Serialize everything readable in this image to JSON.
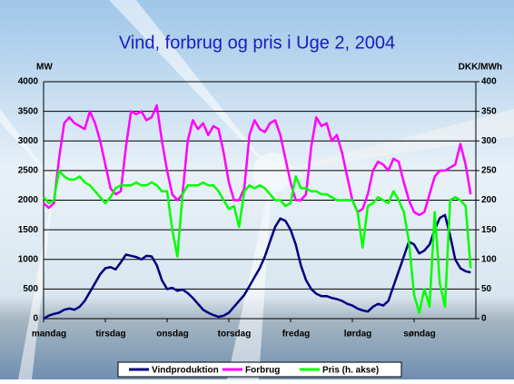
{
  "chart_data": {
    "type": "line",
    "title": "Vind, forbrug og pris i Uge 2, 2004",
    "ylabel": "MW",
    "y2label": "DKK/MWh",
    "x": [
      0,
      2,
      4,
      6,
      8,
      10,
      12,
      14,
      16,
      18,
      20,
      22,
      24,
      26,
      28,
      30,
      32,
      34,
      36,
      38,
      40,
      42,
      44,
      46,
      48,
      50,
      52,
      54,
      56,
      58,
      60,
      62,
      64,
      66,
      68,
      70,
      72,
      74,
      76,
      78,
      80,
      82,
      84,
      86,
      88,
      90,
      92,
      94,
      96,
      98,
      100,
      102,
      104,
      106,
      108,
      110,
      112,
      114,
      116,
      118,
      120,
      122,
      124,
      126,
      128,
      130,
      132,
      134,
      136,
      138,
      140,
      142,
      144,
      146,
      148,
      150,
      152,
      154,
      156,
      158,
      160,
      162,
      164,
      166
    ],
    "xlim": [
      0,
      168
    ],
    "xticks": [
      {
        "value": 0,
        "label": "mandag"
      },
      {
        "value": 24,
        "label": "tirsdag"
      },
      {
        "value": 48,
        "label": "onsdag"
      },
      {
        "value": 72,
        "label": "torsdag"
      },
      {
        "value": 96,
        "label": "fredag"
      },
      {
        "value": 120,
        "label": "lørdag"
      },
      {
        "value": 144,
        "label": "søndag"
      }
    ],
    "ylim": [
      0,
      4000
    ],
    "yticks": [
      0,
      500,
      1000,
      1500,
      2000,
      2500,
      3000,
      3500,
      4000
    ],
    "y2lim": [
      0,
      400
    ],
    "y2ticks": [
      0,
      50,
      100,
      150,
      200,
      250,
      300,
      350,
      400
    ],
    "grid": true,
    "series": [
      {
        "name": "Vindproduktion",
        "color": "#000080",
        "values": [
          0,
          50,
          80,
          100,
          150,
          170,
          150,
          200,
          300,
          450,
          600,
          750,
          850,
          870,
          830,
          950,
          1080,
          1060,
          1040,
          1000,
          1060,
          1050,
          900,
          650,
          500,
          520,
          470,
          490,
          430,
          350,
          250,
          150,
          100,
          60,
          30,
          50,
          100,
          200,
          300,
          400,
          550,
          700,
          850,
          1050,
          1300,
          1550,
          1690,
          1650,
          1500,
          1250,
          900,
          650,
          500,
          420,
          380,
          380,
          350,
          330,
          300,
          250,
          220,
          170,
          140,
          120,
          200,
          250,
          220,
          300,
          550,
          800,
          1050,
          1300,
          1250,
          1100,
          1150,
          1250,
          1500,
          1700,
          1750,
          1400,
          1000,
          850,
          800,
          780
        ]
      },
      {
        "name": "Forbrug",
        "color": "#ff00ff",
        "values": [
          1950,
          1870,
          1950,
          2700,
          3300,
          3400,
          3300,
          3250,
          3200,
          3500,
          3300,
          3000,
          2600,
          2200,
          2100,
          2150,
          2900,
          3500,
          3450,
          3500,
          3350,
          3400,
          3600,
          3000,
          2500,
          2100,
          2000,
          2100,
          3000,
          3350,
          3200,
          3300,
          3100,
          3250,
          3200,
          2800,
          2300,
          2000,
          2000,
          2200,
          3100,
          3350,
          3200,
          3150,
          3300,
          3350,
          3100,
          2700,
          2300,
          2000,
          2000,
          2100,
          2900,
          3400,
          3250,
          3300,
          3000,
          3100,
          2800,
          2400,
          2000,
          1800,
          1850,
          2100,
          2500,
          2650,
          2600,
          2500,
          2700,
          2650,
          2300,
          2000,
          1800,
          1750,
          1800,
          2100,
          2400,
          2500,
          2500,
          2550,
          2600,
          2950,
          2600,
          2100
        ]
      },
      {
        "name": "Pris (h. akse)",
        "color": "#00ff00",
        "axis": "y2",
        "values": [
          205,
          195,
          200,
          250,
          240,
          235,
          235,
          240,
          230,
          225,
          215,
          205,
          195,
          205,
          220,
          225,
          225,
          225,
          230,
          225,
          225,
          230,
          225,
          215,
          215,
          150,
          105,
          210,
          225,
          225,
          225,
          230,
          225,
          225,
          215,
          200,
          185,
          190,
          155,
          215,
          225,
          220,
          225,
          220,
          210,
          200,
          200,
          190,
          195,
          240,
          220,
          220,
          215,
          215,
          210,
          210,
          205,
          200,
          200,
          200,
          200,
          180,
          120,
          190,
          195,
          205,
          200,
          195,
          215,
          200,
          180,
          130,
          40,
          10,
          50,
          20,
          180,
          60,
          20,
          200,
          205,
          200,
          190,
          85
        ]
      }
    ]
  }
}
